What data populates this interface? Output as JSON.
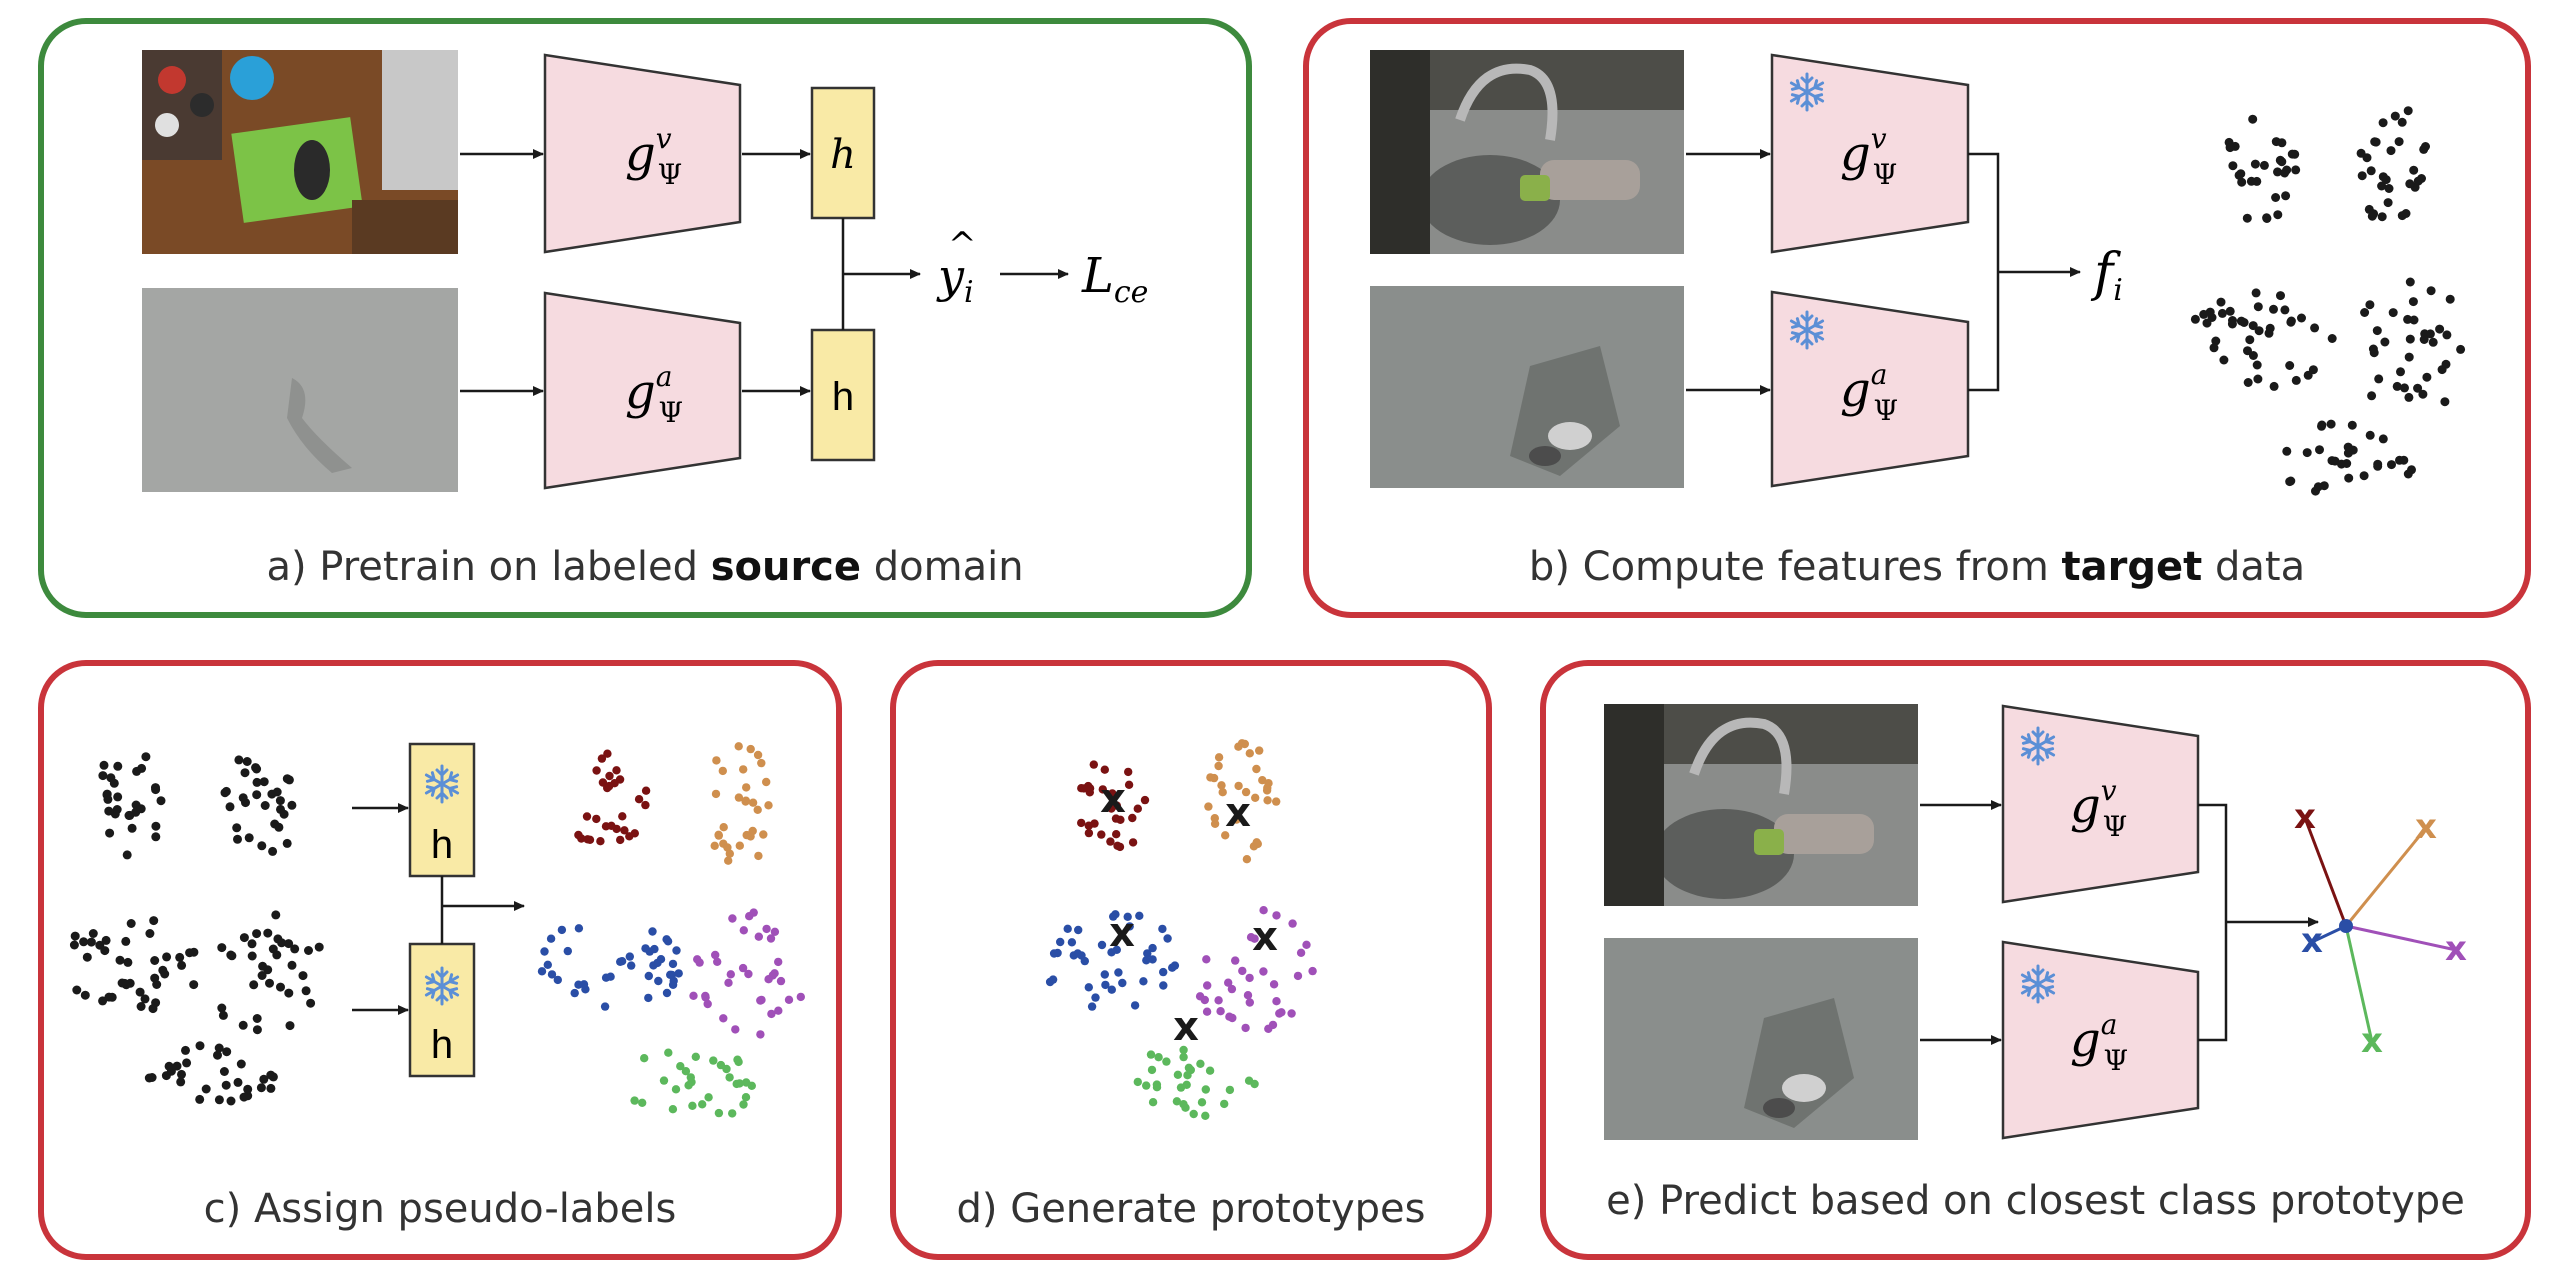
{
  "panels": {
    "a": {
      "caption_pre": "a) Pretrain on labeled ",
      "caption_bold": "source",
      "caption_post": " domain"
    },
    "b": {
      "caption_pre": "b) Compute features from ",
      "caption_bold": "target",
      "caption_post": " data"
    },
    "c": {
      "caption": "c) Assign pseudo-labels"
    },
    "d": {
      "caption": "d) Generate prototypes"
    },
    "e": {
      "caption": "e) Predict based on closest class prototype"
    }
  },
  "encoders": {
    "visual_base": "g",
    "visual_sup": "v",
    "audio_sup": "a",
    "sub": "Ψ"
  },
  "head_label": "h",
  "outputs": {
    "pred_base": "y",
    "pred_sub": "i",
    "loss_base": "L",
    "loss_sub": "ce",
    "feature_base": "f",
    "feature_sub": "i"
  },
  "prototype_marker": "x",
  "frozen_icon": "snowflake-icon",
  "colors": {
    "source_border": "#3d8a3d",
    "target_border": "#c9343b",
    "encoder_fill": "#f6dbe0",
    "head_fill": "#f9eaa6",
    "snowflake": "#5b8fd6",
    "cluster_darkred": "#7a1212",
    "cluster_orange": "#cf8f4e",
    "cluster_blue": "#2a4ea6",
    "cluster_purple": "#a050b8",
    "cluster_green": "#5cb85c",
    "points_unlabeled": "#1a1a1a"
  }
}
